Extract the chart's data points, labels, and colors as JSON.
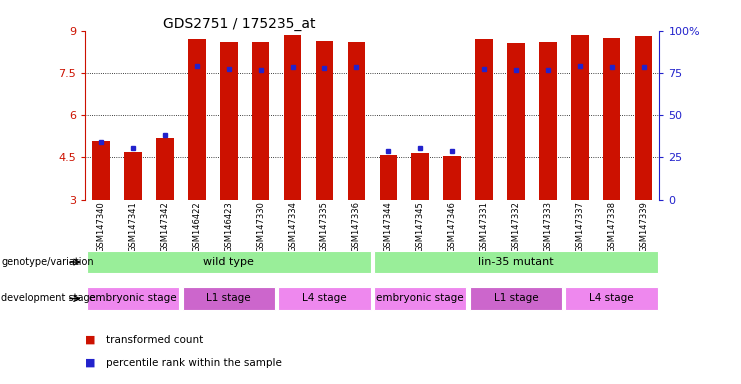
{
  "title": "GDS2751 / 175235_at",
  "samples": [
    "GSM147340",
    "GSM147341",
    "GSM147342",
    "GSM146422",
    "GSM146423",
    "GSM147330",
    "GSM147334",
    "GSM147335",
    "GSM147336",
    "GSM147344",
    "GSM147345",
    "GSM147346",
    "GSM147331",
    "GSM147332",
    "GSM147333",
    "GSM147337",
    "GSM147338",
    "GSM147339"
  ],
  "bar_values": [
    5.1,
    4.7,
    5.2,
    8.7,
    8.6,
    8.6,
    8.85,
    8.65,
    8.6,
    4.6,
    4.65,
    4.55,
    8.7,
    8.55,
    8.6,
    8.85,
    8.75,
    8.8
  ],
  "percentile_values": [
    5.05,
    4.82,
    5.28,
    7.75,
    7.65,
    7.62,
    7.72,
    7.68,
    7.7,
    4.72,
    4.82,
    4.72,
    7.65,
    7.6,
    7.6,
    7.75,
    7.72,
    7.7
  ],
  "bar_bottom": 3.0,
  "ymin": 3.0,
  "ymax": 9.0,
  "yticks": [
    3.0,
    4.5,
    6.0,
    7.5,
    9.0
  ],
  "ytick_labels": [
    "3",
    "4.5",
    "6",
    "7.5",
    "9"
  ],
  "right_ytick_labels": [
    "0",
    "25",
    "50",
    "75",
    "100%"
  ],
  "bar_color": "#cc1100",
  "percentile_color": "#2222cc",
  "bar_width": 0.55,
  "background_color": "#ffffff",
  "tick_color_left": "#cc1100",
  "tick_color_right": "#2222cc",
  "genotype_label": "genotype/variation",
  "dev_label": "development stage",
  "geno_groups": [
    {
      "label": "wild type",
      "start": 0,
      "end": 9,
      "color": "#99ee99"
    },
    {
      "label": "lin-35 mutant",
      "start": 9,
      "end": 18,
      "color": "#99ee99"
    }
  ],
  "dev_groups": [
    {
      "label": "embryonic stage",
      "start": 0,
      "end": 3,
      "color": "#ee88ee"
    },
    {
      "label": "L1 stage",
      "start": 3,
      "end": 6,
      "color": "#cc66cc"
    },
    {
      "label": "L4 stage",
      "start": 6,
      "end": 9,
      "color": "#ee88ee"
    },
    {
      "label": "embryonic stage",
      "start": 9,
      "end": 12,
      "color": "#ee88ee"
    },
    {
      "label": "L1 stage",
      "start": 12,
      "end": 15,
      "color": "#cc66cc"
    },
    {
      "label": "L4 stage",
      "start": 15,
      "end": 18,
      "color": "#ee88ee"
    }
  ],
  "legend_items": [
    {
      "label": "transformed count",
      "color": "#cc1100"
    },
    {
      "label": "percentile rank within the sample",
      "color": "#2222cc"
    }
  ]
}
